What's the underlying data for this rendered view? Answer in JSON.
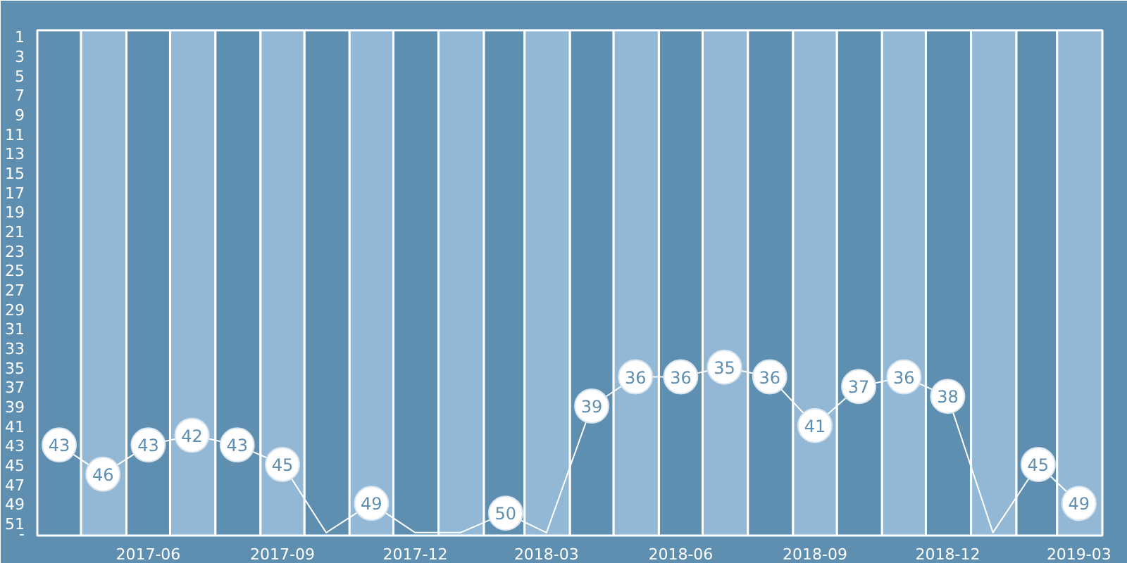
{
  "chart_data": {
    "type": "line",
    "x": [
      "2017-04-16",
      "2017-05-16",
      "2017-06-16",
      "2017-07-16",
      "2017-08-16",
      "2017-09-16",
      "2017-10-16",
      "2017-11-16",
      "2017-12-16",
      "2018-01-16",
      "2018-02-16",
      "2018-03-16",
      "2018-04-16",
      "2018-05-16",
      "2018-06-16",
      "2018-07-16",
      "2018-08-16",
      "2018-09-16",
      "2018-10-16",
      "2018-11-16",
      "2018-12-16",
      "2019-01-16",
      "2019-02-16",
      "2019-03-16"
    ],
    "series": [
      {
        "color": "#ffffff",
        "values": [
          43,
          46,
          43,
          42,
          43,
          45,
          52,
          49,
          52,
          52,
          50,
          52,
          39,
          36,
          36,
          35,
          36,
          41,
          37,
          36,
          38,
          52,
          45,
          49
        ],
        "value_labels": [
          "43",
          "46",
          "43",
          "42",
          "43",
          "45",
          null,
          "49",
          null,
          null,
          "50",
          null,
          "39",
          "36",
          "36",
          "35",
          "36",
          "41",
          "37",
          "36",
          "38",
          null,
          "45",
          "49"
        ]
      }
    ],
    "marker": "circle",
    "xlim": [
      "2017-04-01",
      "2019-04-01"
    ],
    "xticks": [
      {
        "value": "2017-06-16",
        "label": "2017-06"
      },
      {
        "value": "2017-09-16",
        "label": "2017-09"
      },
      {
        "value": "2017-12-16",
        "label": "2017-12"
      },
      {
        "value": "2018-03-16",
        "label": "2018-03"
      },
      {
        "value": "2018-06-16",
        "label": "2018-06"
      },
      {
        "value": "2018-09-16",
        "label": "2018-09"
      },
      {
        "value": "2018-12-16",
        "label": "2018-12"
      },
      {
        "value": "2019-03-16",
        "label": "2019-03"
      }
    ],
    "ylim": [
      52.3,
      0.4
    ],
    "yticks": [
      1,
      3,
      5,
      7,
      9,
      11,
      13,
      15,
      17,
      19,
      21,
      23,
      25,
      27,
      29,
      31,
      33,
      35,
      37,
      39,
      41,
      43,
      45,
      47,
      49,
      51,
      {
        "value": 52,
        "label": "-"
      }
    ],
    "bands": [
      {
        "axis": "x",
        "from": "2017-04-01",
        "to": "2017-05-01",
        "color": "#5e8eb0"
      },
      {
        "axis": "x",
        "from": "2017-06-01",
        "to": "2017-07-01",
        "color": "#5e8eb0"
      },
      {
        "axis": "x",
        "from": "2017-08-01",
        "to": "2017-09-01",
        "color": "#5e8eb0"
      },
      {
        "axis": "x",
        "from": "2017-10-01",
        "to": "2017-11-01",
        "color": "#5e8eb0"
      },
      {
        "axis": "x",
        "from": "2017-12-01",
        "to": "2018-01-01",
        "color": "#5e8eb0"
      },
      {
        "axis": "x",
        "from": "2018-02-01",
        "to": "2018-03-01",
        "color": "#5e8eb0"
      },
      {
        "axis": "x",
        "from": "2018-04-01",
        "to": "2018-05-01",
        "color": "#5e8eb0"
      },
      {
        "axis": "x",
        "from": "2018-06-01",
        "to": "2018-07-01",
        "color": "#5e8eb0"
      },
      {
        "axis": "x",
        "from": "2018-08-01",
        "to": "2018-09-01",
        "color": "#5e8eb0"
      },
      {
        "axis": "x",
        "from": "2018-10-01",
        "to": "2018-11-01",
        "color": "#5e8eb0"
      },
      {
        "axis": "x",
        "from": "2018-12-01",
        "to": "2019-01-01",
        "color": "#5e8eb0"
      },
      {
        "axis": "x",
        "from": "2019-02-01",
        "to": "2019-03-01",
        "color": "#5e8eb0"
      },
      {
        "axis": "x",
        "from": "2017-05-01",
        "to": "2017-06-01",
        "color": "#93b8d6"
      },
      {
        "axis": "x",
        "from": "2017-07-01",
        "to": "2017-08-01",
        "color": "#93b8d6"
      },
      {
        "axis": "x",
        "from": "2017-09-01",
        "to": "2017-10-01",
        "color": "#93b8d6"
      },
      {
        "axis": "x",
        "from": "2017-11-01",
        "to": "2017-12-01",
        "color": "#93b8d6"
      },
      {
        "axis": "x",
        "from": "2018-01-01",
        "to": "2018-02-01",
        "color": "#93b8d6"
      },
      {
        "axis": "x",
        "from": "2018-03-01",
        "to": "2018-04-01",
        "color": "#93b8d6"
      },
      {
        "axis": "x",
        "from": "2018-05-01",
        "to": "2018-06-01",
        "color": "#93b8d6"
      },
      {
        "axis": "x",
        "from": "2018-07-01",
        "to": "2018-08-01",
        "color": "#93b8d6"
      },
      {
        "axis": "x",
        "from": "2018-09-01",
        "to": "2018-10-01",
        "color": "#93b8d6"
      },
      {
        "axis": "x",
        "from": "2018-11-01",
        "to": "2018-12-01",
        "color": "#93b8d6"
      },
      {
        "axis": "x",
        "from": "2019-01-01",
        "to": "2019-02-01",
        "color": "#93b8d6"
      },
      {
        "axis": "x",
        "from": "2019-03-01",
        "to": "2019-04-01",
        "color": "#93b8d6"
      }
    ]
  }
}
